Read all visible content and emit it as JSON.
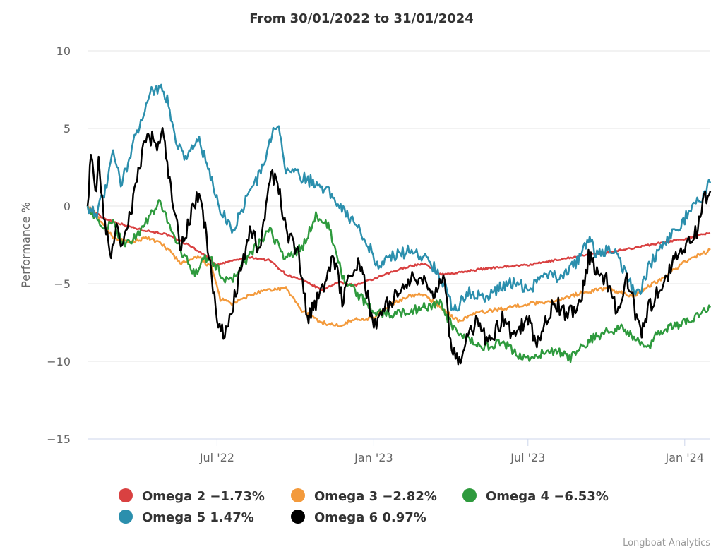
{
  "chart_data": {
    "type": "line",
    "title": "From 30/01/2022 to 31/01/2024",
    "xlabel": "",
    "ylabel": "Performance %",
    "ylim": [
      -15,
      10
    ],
    "yticks": [
      10,
      5,
      0,
      -5,
      -10,
      -15
    ],
    "ytick_labels": [
      "10",
      "5",
      "0",
      "−5",
      "−10",
      "−15"
    ],
    "xlim": [
      "2022-01-30",
      "2024-01-31"
    ],
    "xticks": [
      {
        "date": "2022-07-01",
        "label": "Jul '22"
      },
      {
        "date": "2023-01-01",
        "label": "Jan '23"
      },
      {
        "date": "2023-07-01",
        "label": "Jul '23"
      },
      {
        "date": "2024-01-01",
        "label": "Jan '24"
      }
    ],
    "grid": "horizontal",
    "legend_position": "bottom",
    "series": [
      {
        "name": "Omega 2",
        "legend_label": "Omega 2 −1.73%",
        "color": "#d94141",
        "points": [
          [
            "2022-01-30",
            0
          ],
          [
            "2022-02-15",
            -0.7
          ],
          [
            "2022-03-01",
            -1.0
          ],
          [
            "2022-04-01",
            -1.5
          ],
          [
            "2022-05-01",
            -1.8
          ],
          [
            "2022-06-01",
            -2.6
          ],
          [
            "2022-06-20",
            -3.3
          ],
          [
            "2022-07-01",
            -3.8
          ],
          [
            "2022-07-20",
            -3.5
          ],
          [
            "2022-08-10",
            -3.3
          ],
          [
            "2022-09-01",
            -3.5
          ],
          [
            "2022-09-20",
            -4.4
          ],
          [
            "2022-10-10",
            -4.8
          ],
          [
            "2022-11-01",
            -5.4
          ],
          [
            "2022-11-20",
            -4.9
          ],
          [
            "2022-12-10",
            -5.1
          ],
          [
            "2023-01-01",
            -4.7
          ],
          [
            "2023-01-20",
            -4.3
          ],
          [
            "2023-02-10",
            -3.9
          ],
          [
            "2023-03-01",
            -3.7
          ],
          [
            "2023-03-20",
            -4.4
          ],
          [
            "2023-04-10",
            -4.3
          ],
          [
            "2023-05-01",
            -4.1
          ],
          [
            "2023-06-01",
            -3.9
          ],
          [
            "2023-07-01",
            -3.8
          ],
          [
            "2023-08-01",
            -3.5
          ],
          [
            "2023-09-01",
            -3.2
          ],
          [
            "2023-10-01",
            -3.0
          ],
          [
            "2023-11-01",
            -2.7
          ],
          [
            "2023-12-01",
            -2.4
          ],
          [
            "2024-01-01",
            -2.1
          ],
          [
            "2024-01-31",
            -1.73
          ]
        ]
      },
      {
        "name": "Omega 3",
        "legend_label": "Omega 3 −2.82%",
        "color": "#f39a3c",
        "points": [
          [
            "2022-01-30",
            0
          ],
          [
            "2022-02-15",
            -1.0
          ],
          [
            "2022-03-01",
            -2.0
          ],
          [
            "2022-03-20",
            -2.4
          ],
          [
            "2022-04-10",
            -2.0
          ],
          [
            "2022-05-01",
            -2.6
          ],
          [
            "2022-05-20",
            -3.7
          ],
          [
            "2022-06-10",
            -3.3
          ],
          [
            "2022-06-25",
            -4.0
          ],
          [
            "2022-07-05",
            -6.0
          ],
          [
            "2022-07-20",
            -6.3
          ],
          [
            "2022-08-10",
            -5.7
          ],
          [
            "2022-09-01",
            -5.4
          ],
          [
            "2022-09-20",
            -5.3
          ],
          [
            "2022-10-10",
            -6.8
          ],
          [
            "2022-11-01",
            -7.5
          ],
          [
            "2022-11-20",
            -7.7
          ],
          [
            "2022-12-10",
            -7.3
          ],
          [
            "2023-01-01",
            -7.2
          ],
          [
            "2023-01-20",
            -6.4
          ],
          [
            "2023-02-10",
            -5.8
          ],
          [
            "2023-03-01",
            -5.7
          ],
          [
            "2023-03-20",
            -6.5
          ],
          [
            "2023-04-10",
            -7.4
          ],
          [
            "2023-05-01",
            -6.9
          ],
          [
            "2023-06-01",
            -6.6
          ],
          [
            "2023-07-01",
            -6.3
          ],
          [
            "2023-08-01",
            -6.1
          ],
          [
            "2023-09-01",
            -5.6
          ],
          [
            "2023-10-01",
            -5.3
          ],
          [
            "2023-11-01",
            -5.8
          ],
          [
            "2023-12-01",
            -4.8
          ],
          [
            "2024-01-01",
            -3.6
          ],
          [
            "2024-01-31",
            -2.82
          ]
        ]
      },
      {
        "name": "Omega 4",
        "legend_label": "Omega 4 −6.53%",
        "color": "#2e9a3d",
        "points": [
          [
            "2022-01-30",
            0
          ],
          [
            "2022-02-15",
            -1.4
          ],
          [
            "2022-03-01",
            -1.2
          ],
          [
            "2022-03-15",
            -2.5
          ],
          [
            "2022-04-01",
            -1.7
          ],
          [
            "2022-04-15",
            -0.5
          ],
          [
            "2022-04-25",
            0.2
          ],
          [
            "2022-05-05",
            -1.0
          ],
          [
            "2022-05-15",
            -2.4
          ],
          [
            "2022-05-25",
            -3.4
          ],
          [
            "2022-06-05",
            -4.3
          ],
          [
            "2022-06-20",
            -3.2
          ],
          [
            "2022-07-01",
            -4.0
          ],
          [
            "2022-07-15",
            -5.0
          ],
          [
            "2022-08-01",
            -3.7
          ],
          [
            "2022-08-15",
            -2.7
          ],
          [
            "2022-09-01",
            -1.6
          ],
          [
            "2022-09-20",
            -3.4
          ],
          [
            "2022-10-10",
            -2.6
          ],
          [
            "2022-10-25",
            -0.6
          ],
          [
            "2022-11-10",
            -1.4
          ],
          [
            "2022-11-25",
            -4.5
          ],
          [
            "2022-12-10",
            -5.5
          ],
          [
            "2023-01-01",
            -6.8
          ],
          [
            "2023-01-20",
            -7.0
          ],
          [
            "2023-02-10",
            -6.8
          ],
          [
            "2023-03-01",
            -6.5
          ],
          [
            "2023-03-20",
            -6.3
          ],
          [
            "2023-04-05",
            -8.0
          ],
          [
            "2023-04-20",
            -8.6
          ],
          [
            "2023-05-10",
            -9.1
          ],
          [
            "2023-06-01",
            -8.8
          ],
          [
            "2023-06-20",
            -9.6
          ],
          [
            "2023-07-01",
            -9.8
          ],
          [
            "2023-08-01",
            -9.3
          ],
          [
            "2023-08-20",
            -9.8
          ],
          [
            "2023-09-10",
            -8.7
          ],
          [
            "2023-10-01",
            -8.1
          ],
          [
            "2023-10-20",
            -7.8
          ],
          [
            "2023-11-01",
            -8.5
          ],
          [
            "2023-11-20",
            -9.2
          ],
          [
            "2023-12-01",
            -8.1
          ],
          [
            "2024-01-01",
            -7.5
          ],
          [
            "2024-01-31",
            -6.53
          ]
        ]
      },
      {
        "name": "Omega 5",
        "legend_label": "Omega 5 1.47%",
        "color": "#2b8fad",
        "points": [
          [
            "2022-01-30",
            0
          ],
          [
            "2022-02-10",
            -0.4
          ],
          [
            "2022-02-20",
            1.0
          ],
          [
            "2022-03-01",
            3.4
          ],
          [
            "2022-03-10",
            1.5
          ],
          [
            "2022-03-20",
            3.0
          ],
          [
            "2022-04-01",
            5.4
          ],
          [
            "2022-04-15",
            7.4
          ],
          [
            "2022-04-25",
            7.7
          ],
          [
            "2022-05-05",
            6.6
          ],
          [
            "2022-05-15",
            4.0
          ],
          [
            "2022-05-25",
            3.2
          ],
          [
            "2022-06-10",
            4.3
          ],
          [
            "2022-06-25",
            1.5
          ],
          [
            "2022-07-05",
            -0.2
          ],
          [
            "2022-07-20",
            -1.6
          ],
          [
            "2022-08-05",
            0.6
          ],
          [
            "2022-08-20",
            2.0
          ],
          [
            "2022-09-05",
            4.8
          ],
          [
            "2022-09-10",
            5.2
          ],
          [
            "2022-09-20",
            2.4
          ],
          [
            "2022-10-10",
            1.8
          ],
          [
            "2022-11-01",
            1.3
          ],
          [
            "2022-11-20",
            0.3
          ],
          [
            "2022-12-10",
            -1.2
          ],
          [
            "2022-12-25",
            -2.4
          ],
          [
            "2023-01-05",
            -3.8
          ],
          [
            "2023-01-20",
            -3.3
          ],
          [
            "2023-02-10",
            -2.9
          ],
          [
            "2023-03-01",
            -3.2
          ],
          [
            "2023-03-20",
            -4.4
          ],
          [
            "2023-04-05",
            -6.8
          ],
          [
            "2023-04-20",
            -5.5
          ],
          [
            "2023-05-10",
            -5.9
          ],
          [
            "2023-06-01",
            -5.2
          ],
          [
            "2023-06-20",
            -4.8
          ],
          [
            "2023-07-01",
            -5.6
          ],
          [
            "2023-07-20",
            -4.2
          ],
          [
            "2023-08-10",
            -4.7
          ],
          [
            "2023-09-01",
            -3.3
          ],
          [
            "2023-09-10",
            -2.0
          ],
          [
            "2023-09-20",
            -3.2
          ],
          [
            "2023-10-10",
            -2.7
          ],
          [
            "2023-11-01",
            -5.3
          ],
          [
            "2023-11-10",
            -5.7
          ],
          [
            "2023-11-20",
            -3.8
          ],
          [
            "2023-12-10",
            -2.4
          ],
          [
            "2024-01-01",
            -0.8
          ],
          [
            "2024-01-20",
            0.5
          ],
          [
            "2024-01-31",
            1.47
          ]
        ]
      },
      {
        "name": "Omega 6",
        "legend_label": "Omega 6 0.97%",
        "color": "#000000",
        "points": [
          [
            "2022-01-30",
            0
          ],
          [
            "2022-02-03",
            3.6
          ],
          [
            "2022-02-08",
            0.5
          ],
          [
            "2022-02-12",
            2.8
          ],
          [
            "2022-02-18",
            -0.3
          ],
          [
            "2022-02-25",
            -3.3
          ],
          [
            "2022-03-05",
            -1.4
          ],
          [
            "2022-03-10",
            -2.3
          ],
          [
            "2022-03-20",
            -0.9
          ],
          [
            "2022-04-01",
            2.5
          ],
          [
            "2022-04-10",
            4.9
          ],
          [
            "2022-04-20",
            3.8
          ],
          [
            "2022-04-28",
            4.9
          ],
          [
            "2022-05-05",
            2.2
          ],
          [
            "2022-05-12",
            -0.5
          ],
          [
            "2022-05-20",
            -2.8
          ],
          [
            "2022-06-01",
            -0.4
          ],
          [
            "2022-06-10",
            0.8
          ],
          [
            "2022-06-20",
            -2.5
          ],
          [
            "2022-07-01",
            -7.5
          ],
          [
            "2022-07-10",
            -8.5
          ],
          [
            "2022-07-20",
            -6.2
          ],
          [
            "2022-08-01",
            -3.5
          ],
          [
            "2022-08-10",
            -1.5
          ],
          [
            "2022-08-20",
            -3.0
          ],
          [
            "2022-09-01",
            2.1
          ],
          [
            "2022-09-10",
            1.6
          ],
          [
            "2022-09-20",
            -1.5
          ],
          [
            "2022-10-05",
            -3.3
          ],
          [
            "2022-10-15",
            -7.3
          ],
          [
            "2022-10-25",
            -6.2
          ],
          [
            "2022-11-05",
            -4.8
          ],
          [
            "2022-11-15",
            -3.2
          ],
          [
            "2022-11-25",
            -6.0
          ],
          [
            "2022-12-05",
            -4.2
          ],
          [
            "2022-12-15",
            -3.6
          ],
          [
            "2022-12-25",
            -5.7
          ],
          [
            "2023-01-01",
            -7.9
          ],
          [
            "2023-01-15",
            -6.5
          ],
          [
            "2023-02-01",
            -5.5
          ],
          [
            "2023-02-15",
            -4.6
          ],
          [
            "2023-03-01",
            -5.0
          ],
          [
            "2023-03-15",
            -5.6
          ],
          [
            "2023-03-25",
            -4.2
          ],
          [
            "2023-04-01",
            -8.8
          ],
          [
            "2023-04-10",
            -10.2
          ],
          [
            "2023-04-20",
            -8.3
          ],
          [
            "2023-05-01",
            -7.6
          ],
          [
            "2023-05-15",
            -8.8
          ],
          [
            "2023-06-01",
            -7.3
          ],
          [
            "2023-06-15",
            -8.4
          ],
          [
            "2023-07-01",
            -7.2
          ],
          [
            "2023-07-10",
            -8.8
          ],
          [
            "2023-07-20",
            -7.8
          ],
          [
            "2023-08-01",
            -6.2
          ],
          [
            "2023-08-15",
            -6.9
          ],
          [
            "2023-09-01",
            -6.3
          ],
          [
            "2023-09-10",
            -3.3
          ],
          [
            "2023-09-20",
            -4.0
          ],
          [
            "2023-10-01",
            -4.8
          ],
          [
            "2023-10-15",
            -6.9
          ],
          [
            "2023-10-25",
            -4.8
          ],
          [
            "2023-11-01",
            -6.1
          ],
          [
            "2023-11-10",
            -8.2
          ],
          [
            "2023-11-20",
            -6.5
          ],
          [
            "2023-12-05",
            -5.1
          ],
          [
            "2023-12-20",
            -3.5
          ],
          [
            "2024-01-01",
            -2.6
          ],
          [
            "2024-01-15",
            -1.6
          ],
          [
            "2024-01-25",
            0.6
          ],
          [
            "2024-01-31",
            0.97
          ]
        ]
      }
    ]
  },
  "credit": "Longboat Analytics"
}
